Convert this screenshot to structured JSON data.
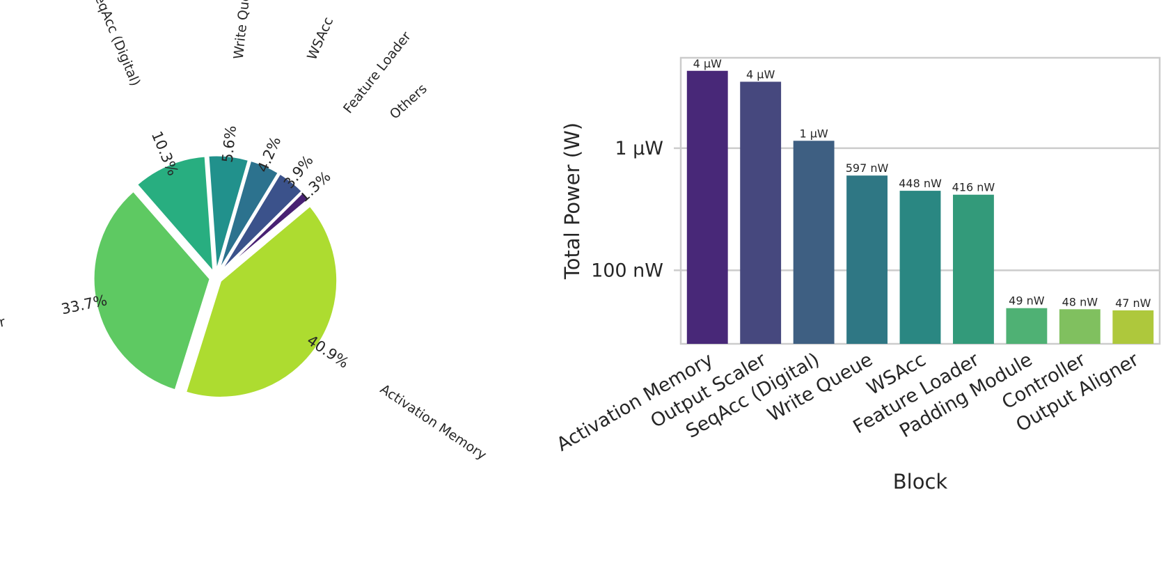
{
  "chart_data": [
    {
      "type": "pie",
      "labels": [
        "Others",
        "Feature Loader",
        "WSAcc",
        "Write Queue",
        "SeqAcc (Digital)",
        "Output Scaler",
        "Activation Memory"
      ],
      "values": [
        1.3,
        3.9,
        4.2,
        5.6,
        10.3,
        33.7,
        40.9
      ],
      "value_labels": [
        "1.3%",
        "3.9%",
        "4.2%",
        "5.6%",
        "10.3%",
        "33.7%",
        "40.9%"
      ],
      "colors": [
        "#482173",
        "#3b528b",
        "#2c728e",
        "#21918c",
        "#28ae80",
        "#5ec962",
        "#addc30"
      ],
      "exploded": true
    },
    {
      "type": "bar",
      "xlabel": "Block",
      "ylabel": "Total Power (W)",
      "yscale": "log",
      "ylim": [
        2.5e-08,
        5.5e-06
      ],
      "yticks": [
        1e-07,
        1e-06
      ],
      "ytick_labels": [
        "100 nW",
        "1 µW"
      ],
      "grid": true,
      "categories": [
        "Activation Memory",
        "Output Scaler",
        "SeqAcc (Digital)",
        "Write Queue",
        "WSAcc",
        "Feature Loader",
        "Padding Module",
        "Controller",
        "Output Aligner"
      ],
      "values": [
        4.3e-06,
        3.5e-06,
        1.15e-06,
        5.97e-07,
        4.48e-07,
        4.16e-07,
        4.9e-08,
        4.8e-08,
        4.7e-08
      ],
      "value_labels": [
        "4 µW",
        "4 µW",
        "1 µW",
        "597 nW",
        "448 nW",
        "416 nW",
        "49 nW",
        "48 nW",
        "47 nW"
      ],
      "colors": [
        "#482878",
        "#46487e",
        "#3e5f82",
        "#2f7784",
        "#2a8782",
        "#339a7a",
        "#4fb174",
        "#80c05f",
        "#aec83c"
      ]
    }
  ]
}
